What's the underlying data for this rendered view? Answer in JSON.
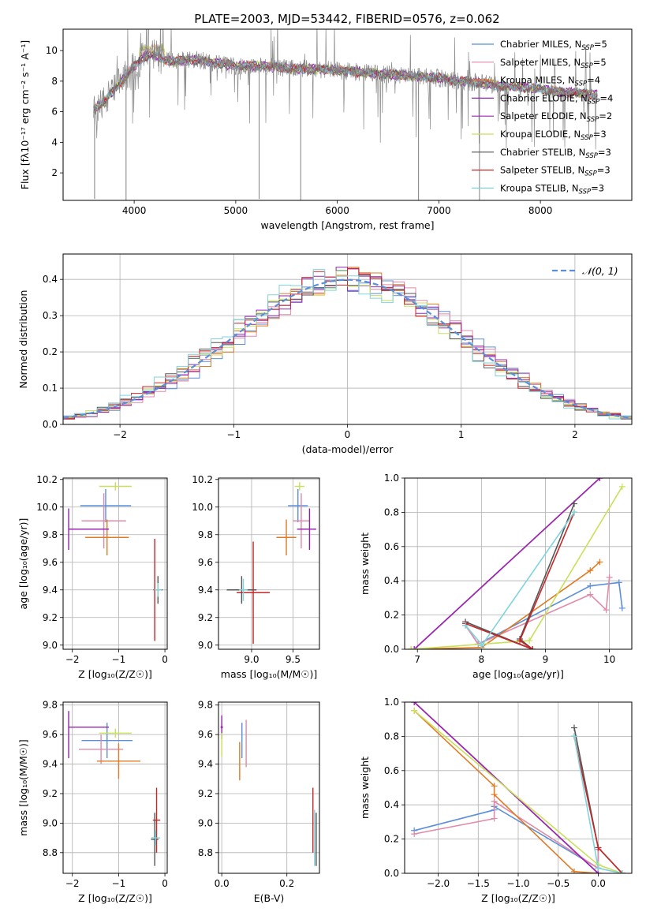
{
  "figure_title": "PLATE=2003, MJD=53442, FIBERID=0576, z=0.062",
  "colors": {
    "chabrier_miles": "#5b8fd9",
    "salpeter_miles": "#e08aa8",
    "kroupa_miles": "#e07b24",
    "chabrier_elodie": "#8e24aa",
    "salpeter_elodie": "#9c27b0",
    "kroupa_elodie": "#c8e05a",
    "chabrier_stelib": "#555555",
    "salpeter_stelib": "#c62828",
    "kroupa_stelib": "#7fd3dc",
    "observed": "#808080",
    "normal": "#5b8fd9"
  },
  "chart_data": [
    {
      "type": "line",
      "panel": "spectrum",
      "xlabel": "wavelength [Angstrom, rest frame]",
      "ylabel": "Flux [fλ10⁻¹⁷ erg cm⁻² s⁻¹ A⁻¹]",
      "xlim": [
        3300,
        8900
      ],
      "ylim": [
        0.2,
        11.4
      ],
      "xticks": [
        4000,
        5000,
        6000,
        7000,
        8000
      ],
      "yticks": [
        2,
        4,
        6,
        8,
        10
      ],
      "continuum": {
        "x": [
          3600,
          3700,
          3800,
          3900,
          4000,
          4100,
          4200,
          4300,
          4400,
          4600,
          4800,
          5000,
          5200,
          5400,
          5600,
          5800,
          6000,
          6200,
          6400,
          6600,
          6800,
          7000,
          7200,
          7400,
          7600,
          7800,
          8000,
          8200,
          8400,
          8560
        ],
        "y": [
          6.2,
          6.6,
          7.4,
          8.2,
          9.0,
          9.6,
          9.7,
          9.4,
          9.3,
          9.4,
          9.2,
          9.0,
          9.0,
          8.9,
          8.8,
          8.8,
          8.7,
          8.6,
          8.5,
          8.4,
          8.3,
          8.2,
          8.0,
          7.9,
          7.7,
          7.6,
          7.5,
          7.3,
          7.2,
          7.1
        ]
      },
      "legend": [
        {
          "label": "Chabrier MILES, N",
          "sub": "SSP",
          "tail": "=5",
          "color_key": "chabrier_miles"
        },
        {
          "label": "Salpeter MILES, N",
          "sub": "SSP",
          "tail": "=5",
          "color_key": "salpeter_miles"
        },
        {
          "label": "Kroupa MILES, N",
          "sub": "SSP",
          "tail": "=4",
          "color_key": "kroupa_miles"
        },
        {
          "label": "Chabrier ELODIE, N",
          "sub": "SSP",
          "tail": "=4",
          "color_key": "chabrier_elodie"
        },
        {
          "label": "Salpeter ELODIE, N",
          "sub": "SSP",
          "tail": "=2",
          "color_key": "salpeter_elodie"
        },
        {
          "label": "Kroupa ELODIE, N",
          "sub": "SSP",
          "tail": "=3",
          "color_key": "kroupa_elodie"
        },
        {
          "label": "Chabrier STELIB, N",
          "sub": "SSP",
          "tail": "=3",
          "color_key": "chabrier_stelib"
        },
        {
          "label": "Salpeter STELIB, N",
          "sub": "SSP",
          "tail": "=3",
          "color_key": "salpeter_stelib"
        },
        {
          "label": "Kroupa STELIB, N",
          "sub": "SSP",
          "tail": "=3",
          "color_key": "kroupa_stelib"
        }
      ],
      "legend_position": "top-right"
    },
    {
      "type": "histogram",
      "panel": "residuals",
      "xlabel": "(data-model)/error",
      "ylabel": "Normed distribution",
      "xlim": [
        -2.5,
        2.5
      ],
      "ylim": [
        0,
        0.47
      ],
      "xticks": [
        -2,
        -1,
        0,
        1,
        2
      ],
      "yticks": [
        0.0,
        0.1,
        0.2,
        0.3,
        0.4
      ],
      "grid": true,
      "bin_width": 0.1,
      "bin_edges": [
        -2.5,
        2.5
      ],
      "reference_curve": {
        "label": "𝒩(0, 1)",
        "style": "dashed"
      },
      "legend_position": "top-right"
    },
    {
      "type": "errorbar",
      "panel": "age_vs_Z",
      "xlabel": "Z [log₁₀(Z/Z☉)]",
      "ylabel": "age  [log₁₀(age/yr)]",
      "xlim": [
        -2.2,
        0.05
      ],
      "ylim": [
        8.97,
        10.21
      ],
      "xticks": [
        -2,
        -1,
        0
      ],
      "yticks": [
        9.0,
        9.2,
        9.4,
        9.6,
        9.8,
        10.0,
        10.2
      ],
      "grid": true,
      "points": [
        {
          "color_key": "chabrier_miles",
          "x": -1.28,
          "xerr": 0.55,
          "y": 10.01,
          "yerr": 0.12
        },
        {
          "color_key": "salpeter_miles",
          "x": -1.32,
          "xerr": 0.48,
          "y": 9.9,
          "yerr": 0.2
        },
        {
          "color_key": "kroupa_miles",
          "x": -1.25,
          "xerr": 0.47,
          "y": 9.78,
          "yerr": 0.13
        },
        {
          "color_key": "chabrier_elodie",
          "x": -2.08,
          "xerr": 0.0,
          "y": 9.84,
          "yerr": 0.15
        },
        {
          "color_key": "salpeter_elodie",
          "x": -1.65,
          "xerr": 0.44,
          "y": 9.84,
          "yerr": 0.0
        },
        {
          "color_key": "kroupa_elodie",
          "x": -1.07,
          "xerr": 0.35,
          "y": 10.15,
          "yerr": 0.03
        },
        {
          "color_key": "chabrier_stelib",
          "x": -0.15,
          "xerr": 0.1,
          "y": 9.4,
          "yerr": 0.1
        },
        {
          "color_key": "salpeter_stelib",
          "x": -0.22,
          "xerr": 0.02,
          "y": 9.4,
          "yerr": 0.37
        },
        {
          "color_key": "kroupa_stelib",
          "x": -0.15,
          "xerr": 0.08,
          "y": 9.4,
          "yerr": 0.05
        }
      ]
    },
    {
      "type": "errorbar",
      "panel": "age_vs_mass",
      "xlabel": "mass [log₁₀(M/M☉)]",
      "ylabel": "",
      "xlim": [
        8.6,
        9.82
      ],
      "ylim": [
        8.97,
        10.21
      ],
      "xticks": [
        9.0,
        9.5
      ],
      "yticks": [
        9.0,
        9.2,
        9.4,
        9.6,
        9.8,
        10.0,
        10.2
      ],
      "grid": true,
      "points": [
        {
          "color_key": "chabrier_miles",
          "x": 9.56,
          "xerr": 0.12,
          "y": 10.01,
          "yerr": 0.12
        },
        {
          "color_key": "salpeter_miles",
          "x": 9.6,
          "xerr": 0.1,
          "y": 9.9,
          "yerr": 0.2
        },
        {
          "color_key": "kroupa_miles",
          "x": 9.42,
          "xerr": 0.12,
          "y": 9.78,
          "yerr": 0.13
        },
        {
          "color_key": "chabrier_elodie",
          "x": 9.7,
          "xerr": 0.08,
          "y": 9.84,
          "yerr": 0.15
        },
        {
          "color_key": "salpeter_elodie",
          "x": 9.65,
          "xerr": 0.1,
          "y": 9.84,
          "yerr": 0.0
        },
        {
          "color_key": "kroupa_elodie",
          "x": 9.58,
          "xerr": 0.06,
          "y": 10.15,
          "yerr": 0.03
        },
        {
          "color_key": "chabrier_stelib",
          "x": 8.88,
          "xerr": 0.18,
          "y": 9.4,
          "yerr": 0.1
        },
        {
          "color_key": "salpeter_stelib",
          "x": 9.02,
          "xerr": 0.2,
          "y": 9.38,
          "yerr": 0.37
        },
        {
          "color_key": "kroupa_stelib",
          "x": 8.9,
          "xerr": 0.05,
          "y": 9.4,
          "yerr": 0.08
        }
      ]
    },
    {
      "type": "line",
      "panel": "mass_weight_vs_age",
      "xlabel": "age  [log₁₀(age/yr)]",
      "ylabel": "mass weight",
      "xlim": [
        6.8,
        10.35
      ],
      "ylim": [
        0,
        1
      ],
      "xticks": [
        7,
        8,
        9,
        10
      ],
      "yticks": [
        0.0,
        0.2,
        0.4,
        0.6,
        0.8,
        1.0
      ],
      "grid": true,
      "series": [
        {
          "color_key": "chabrier_miles",
          "x": [
            7.75,
            7.95,
            9.7,
            10.15,
            10.2
          ],
          "y": [
            0.14,
            0.03,
            0.37,
            0.39,
            0.24
          ]
        },
        {
          "color_key": "salpeter_miles",
          "x": [
            7.75,
            7.95,
            9.7,
            9.95,
            10.0
          ],
          "y": [
            0.14,
            0.03,
            0.32,
            0.23,
            0.42
          ]
        },
        {
          "color_key": "kroupa_miles",
          "x": [
            6.9,
            8.0,
            9.7,
            9.85
          ],
          "y": [
            0.0,
            0.01,
            0.46,
            0.51
          ]
        },
        {
          "color_key": "chabrier_elodie",
          "x": [
            6.95,
            9.85
          ],
          "y": [
            0.0,
            1.0
          ]
        },
        {
          "color_key": "salpeter_elodie",
          "x": [
            6.95,
            9.85
          ],
          "y": [
            0.0,
            1.0
          ]
        },
        {
          "color_key": "kroupa_elodie",
          "x": [
            6.9,
            8.75,
            10.2
          ],
          "y": [
            0.0,
            0.05,
            0.95
          ]
        },
        {
          "color_key": "chabrier_stelib",
          "x": [
            7.75,
            8.8,
            8.6,
            9.45
          ],
          "y": [
            0.16,
            0.0,
            0.06,
            0.85
          ]
        },
        {
          "color_key": "salpeter_stelib",
          "x": [
            7.75,
            8.8,
            8.6,
            9.45
          ],
          "y": [
            0.15,
            0.0,
            0.05,
            0.8
          ]
        },
        {
          "color_key": "kroupa_stelib",
          "x": [
            7.75,
            8.0,
            8.0,
            9.45
          ],
          "y": [
            0.14,
            0.03,
            0.02,
            0.8
          ]
        }
      ]
    },
    {
      "type": "errorbar",
      "panel": "mass_vs_Z",
      "xlabel": "Z [log₁₀(Z/Z☉)]",
      "ylabel": "mass [log₁₀(M/M☉)]",
      "xlim": [
        -2.2,
        0.05
      ],
      "ylim": [
        8.66,
        9.82
      ],
      "xticks": [
        -2,
        -1,
        0
      ],
      "yticks": [
        8.8,
        9.0,
        9.2,
        9.4,
        9.6,
        9.8
      ],
      "grid": true,
      "points": [
        {
          "color_key": "chabrier_miles",
          "x": -1.25,
          "xerr": 0.55,
          "y": 9.56,
          "yerr": 0.12
        },
        {
          "color_key": "salpeter_miles",
          "x": -1.38,
          "xerr": 0.48,
          "y": 9.5,
          "yerr": 0.1
        },
        {
          "color_key": "kroupa_miles",
          "x": -1.0,
          "xerr": 0.47,
          "y": 9.42,
          "yerr": 0.12
        },
        {
          "color_key": "chabrier_elodie",
          "x": -2.08,
          "xerr": 0.0,
          "y": 9.6,
          "yerr": 0.16
        },
        {
          "color_key": "salpeter_elodie",
          "x": -1.65,
          "xerr": 0.44,
          "y": 9.65,
          "yerr": 0.0
        },
        {
          "color_key": "kroupa_elodie",
          "x": -1.07,
          "xerr": 0.35,
          "y": 9.61,
          "yerr": 0.03
        },
        {
          "color_key": "chabrier_stelib",
          "x": -0.22,
          "xerr": 0.08,
          "y": 8.89,
          "yerr": 0.18
        },
        {
          "color_key": "salpeter_stelib",
          "x": -0.18,
          "xerr": 0.08,
          "y": 9.02,
          "yerr": 0.22
        },
        {
          "color_key": "kroupa_stelib",
          "x": -0.2,
          "xerr": 0.1,
          "y": 8.9,
          "yerr": 0.05
        }
      ]
    },
    {
      "type": "errorbar",
      "panel": "mass_vs_EBV",
      "xlabel": "E(B-V)",
      "ylabel": "",
      "xlim": [
        -0.01,
        0.3
      ],
      "ylim": [
        8.66,
        9.82
      ],
      "xticks": [
        0.0,
        0.2
      ],
      "yticks": [
        8.8,
        9.0,
        9.2,
        9.4,
        9.6,
        9.8
      ],
      "grid": true,
      "points": [
        {
          "color_key": "chabrier_miles",
          "x": 0.062,
          "xerr": 0.0,
          "y": 9.56,
          "yerr": 0.12
        },
        {
          "color_key": "salpeter_miles",
          "x": 0.075,
          "xerr": 0.0,
          "y": 9.54,
          "yerr": 0.16
        },
        {
          "color_key": "kroupa_miles",
          "x": 0.055,
          "xerr": 0.0,
          "y": 9.42,
          "yerr": 0.13
        },
        {
          "color_key": "chabrier_elodie",
          "x": 0.0,
          "xerr": 0.0,
          "y": 9.65,
          "yerr": 0.08
        },
        {
          "color_key": "salpeter_elodie",
          "x": 0.0,
          "xerr": 0.0,
          "y": 9.65,
          "yerr": 0.0
        },
        {
          "color_key": "kroupa_elodie",
          "x": 0.0,
          "xerr": 0.0,
          "y": 9.53,
          "yerr": 0.08
        },
        {
          "color_key": "chabrier_stelib",
          "x": 0.29,
          "xerr": 0.0,
          "y": 8.89,
          "yerr": 0.18
        },
        {
          "color_key": "salpeter_stelib",
          "x": 0.28,
          "xerr": 0.0,
          "y": 9.02,
          "yerr": 0.22
        },
        {
          "color_key": "kroupa_stelib",
          "x": 0.285,
          "xerr": 0.0,
          "y": 8.9,
          "yerr": 0.19
        }
      ]
    },
    {
      "type": "line",
      "panel": "mass_weight_vs_Z",
      "xlabel": "Z [log₁₀(Z/Z☉)]",
      "ylabel": "mass weight",
      "xlim": [
        -2.42,
        0.42
      ],
      "ylim": [
        0,
        1
      ],
      "xticks": [
        -2.0,
        -1.5,
        -1.0,
        -0.5,
        0.0
      ],
      "yticks": [
        0.0,
        0.2,
        0.4,
        0.6,
        0.8,
        1.0
      ],
      "grid": true,
      "series": [
        {
          "color_key": "chabrier_miles",
          "x": [
            -2.3,
            -1.3,
            -1.3,
            0.0,
            0.0
          ],
          "y": [
            0.25,
            0.37,
            0.39,
            0.03,
            0.14
          ]
        },
        {
          "color_key": "salpeter_miles",
          "x": [
            -2.3,
            -1.3,
            -1.3,
            0.0,
            0.0
          ],
          "y": [
            0.23,
            0.32,
            0.42,
            0.03,
            0.14
          ]
        },
        {
          "color_key": "kroupa_miles",
          "x": [
            -2.3,
            -1.3,
            -1.3,
            -0.3,
            0.0
          ],
          "y": [
            0.95,
            0.51,
            0.46,
            0.01,
            0.0
          ]
        },
        {
          "color_key": "chabrier_elodie",
          "x": [
            -2.3,
            0.0
          ],
          "y": [
            1.0,
            0.0
          ]
        },
        {
          "color_key": "salpeter_elodie",
          "x": [
            -2.3,
            0.0
          ],
          "y": [
            1.0,
            0.0
          ]
        },
        {
          "color_key": "kroupa_elodie",
          "x": [
            -2.3,
            0.0,
            0.3
          ],
          "y": [
            0.95,
            0.05,
            0.0
          ]
        },
        {
          "color_key": "chabrier_stelib",
          "x": [
            -0.3,
            0.0,
            0.3
          ],
          "y": [
            0.85,
            0.15,
            0.0
          ]
        },
        {
          "color_key": "salpeter_stelib",
          "x": [
            -0.3,
            0.0,
            0.3
          ],
          "y": [
            0.8,
            0.15,
            0.0
          ]
        },
        {
          "color_key": "kroupa_stelib",
          "x": [
            -0.3,
            0.0,
            0.3
          ],
          "y": [
            0.8,
            0.03,
            0.0
          ]
        }
      ]
    }
  ]
}
